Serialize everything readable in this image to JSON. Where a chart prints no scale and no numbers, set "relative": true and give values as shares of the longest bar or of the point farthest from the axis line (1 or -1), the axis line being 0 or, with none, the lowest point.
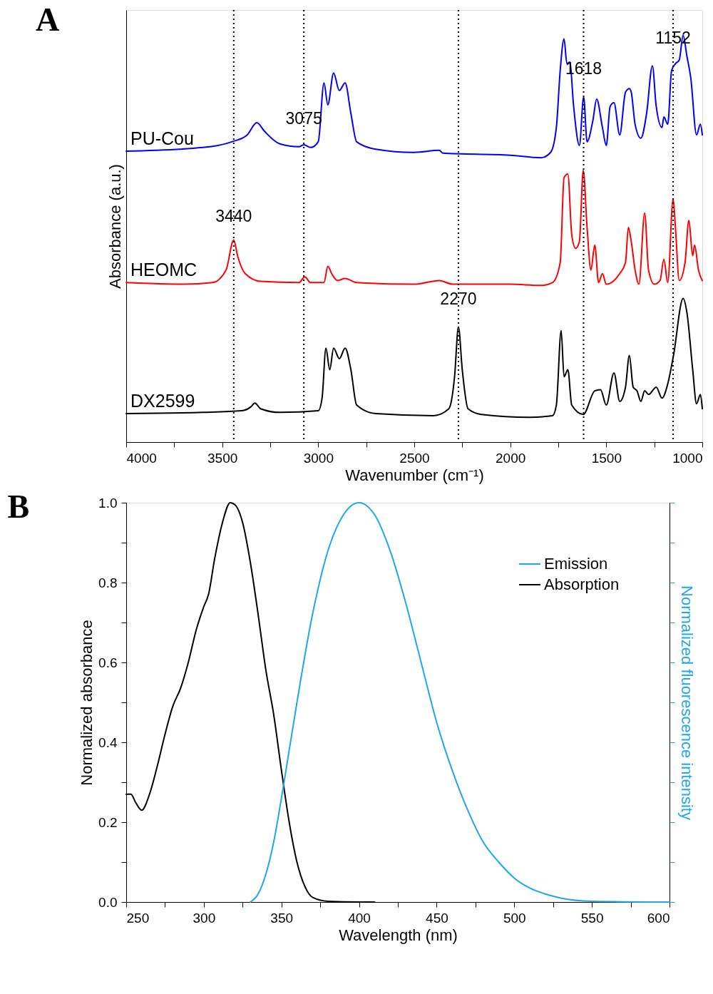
{
  "chart_data": [
    {
      "type": "line",
      "title": "A",
      "xlabel": "Wavenumber (cm⁻¹)",
      "ylabel": "Absorbance (a.u.)",
      "relative": true,
      "xlim": [
        4000,
        1000
      ],
      "xticks": [
        4000,
        {
          "value": 3750,
          "label": null
        },
        3500,
        {
          "value": 3250,
          "label": null
        },
        3000,
        {
          "value": 2750,
          "label": null
        },
        2500,
        {
          "value": 2250,
          "label": null
        },
        2000,
        {
          "value": 1750,
          "label": null
        },
        1500,
        {
          "value": 1250,
          "label": null
        },
        1000
      ],
      "tick_labels": "x",
      "legend": false,
      "line_style": "solid",
      "marker": "none",
      "series": [
        {
          "name": "PU-Cou",
          "color": "#0000ff",
          "x": [
            4000,
            3600,
            3450,
            3370,
            3320,
            3280,
            3200,
            3100,
            3075,
            3040,
            3000,
            2970,
            2950,
            2920,
            2890,
            2860,
            2830,
            2800,
            2700,
            2500,
            2370,
            2350,
            2000,
            1840,
            1790,
            1760,
            1740,
            1720,
            1705,
            1690,
            1670,
            1640,
            1618,
            1600,
            1570,
            1550,
            1520,
            1500,
            1480,
            1460,
            1430,
            1400,
            1380,
            1370,
            1350,
            1320,
            1290,
            1260,
            1240,
            1210,
            1200,
            1180,
            1160,
            1140,
            1120,
            1100,
            1080,
            1060,
            1030,
            1010,
            1000
          ],
          "values": [
            0.715,
            0.724,
            0.738,
            0.755,
            0.785,
            0.764,
            0.733,
            0.726,
            0.731,
            0.724,
            0.738,
            0.883,
            0.829,
            0.907,
            0.864,
            0.883,
            0.808,
            0.738,
            0.72,
            0.712,
            0.717,
            0.71,
            0.705,
            0.699,
            0.712,
            0.773,
            0.913,
            0.991,
            0.93,
            0.934,
            0.825,
            0.729,
            0.848,
            0.738,
            0.79,
            0.843,
            0.773,
            0.729,
            0.825,
            0.834,
            0.755,
            0.86,
            0.869,
            0.86,
            0.781,
            0.747,
            0.808,
            0.925,
            0.825,
            0.773,
            0.799,
            0.781,
            0.913,
            0.93,
            0.939,
            1.0,
            0.948,
            0.895,
            0.755,
            0.781,
            0.755
          ]
        },
        {
          "name": "HEOMC",
          "color": "#ff0000",
          "x": [
            4000,
            3700,
            3550,
            3480,
            3440,
            3420,
            3380,
            3300,
            3100,
            3070,
            3040,
            2970,
            2950,
            2930,
            2900,
            2860,
            2800,
            2500,
            2370,
            2300,
            2000,
            1840,
            1780,
            1740,
            1720,
            1700,
            1680,
            1660,
            1640,
            1620,
            1600,
            1580,
            1560,
            1540,
            1520,
            1500,
            1460,
            1430,
            1400,
            1385,
            1370,
            1350,
            1330,
            1300,
            1280,
            1250,
            1220,
            1200,
            1180,
            1152,
            1140,
            1120,
            1090,
            1070,
            1050,
            1040,
            1020,
            1000
          ],
          "values": [
            0.392,
            0.388,
            0.392,
            0.423,
            0.497,
            0.458,
            0.414,
            0.395,
            0.392,
            0.406,
            0.392,
            0.392,
            0.432,
            0.414,
            0.397,
            0.402,
            0.392,
            0.388,
            0.397,
            0.388,
            0.388,
            0.385,
            0.392,
            0.441,
            0.65,
            0.659,
            0.51,
            0.476,
            0.493,
            0.668,
            0.528,
            0.423,
            0.484,
            0.392,
            0.414,
            0.388,
            0.397,
            0.414,
            0.441,
            0.528,
            0.493,
            0.423,
            0.388,
            0.563,
            0.423,
            0.388,
            0.397,
            0.449,
            0.392,
            0.598,
            0.528,
            0.397,
            0.441,
            0.545,
            0.458,
            0.484,
            0.423,
            0.397
          ]
        },
        {
          "name": "DX2599",
          "color": "#000000",
          "x": [
            4000,
            3600,
            3400,
            3350,
            3330,
            3300,
            3200,
            3000,
            2980,
            2960,
            2940,
            2920,
            2890,
            2860,
            2830,
            2800,
            2700,
            2400,
            2320,
            2290,
            2270,
            2250,
            2220,
            2150,
            1900,
            1780,
            1760,
            1735,
            1720,
            1700,
            1680,
            1620,
            1560,
            1530,
            1500,
            1460,
            1430,
            1400,
            1380,
            1360,
            1340,
            1320,
            1300,
            1280,
            1240,
            1210,
            1180,
            1150,
            1100,
            1080,
            1050,
            1030,
            1010,
            1000
          ],
          "values": [
            0.07,
            0.073,
            0.077,
            0.087,
            0.096,
            0.082,
            0.073,
            0.077,
            0.108,
            0.231,
            0.178,
            0.231,
            0.205,
            0.231,
            0.178,
            0.091,
            0.07,
            0.065,
            0.082,
            0.161,
            0.283,
            0.178,
            0.082,
            0.068,
            0.061,
            0.065,
            0.091,
            0.274,
            0.161,
            0.178,
            0.091,
            0.068,
            0.126,
            0.129,
            0.091,
            0.17,
            0.1,
            0.135,
            0.213,
            0.135,
            0.126,
            0.1,
            0.126,
            0.117,
            0.135,
            0.108,
            0.143,
            0.213,
            0.353,
            0.318,
            0.178,
            0.094,
            0.117,
            0.082
          ]
        }
      ],
      "ref_lines": [
        {
          "axis": "x",
          "value": 3440,
          "color": "#000000",
          "line_style": "dotted"
        },
        {
          "axis": "x",
          "value": 3075,
          "color": "#000000",
          "line_style": "dotted"
        },
        {
          "axis": "x",
          "value": 2270,
          "color": "#000000",
          "line_style": "dotted"
        },
        {
          "axis": "x",
          "value": 1618,
          "color": "#000000",
          "line_style": "dotted"
        },
        {
          "axis": "x",
          "value": 1152,
          "color": "#000000",
          "line_style": "dotted"
        }
      ],
      "annotations": [
        {
          "text": "3440",
          "x": 3440,
          "y": 0.533
        },
        {
          "text": "3075",
          "x": 3075,
          "y": 0.773
        },
        {
          "text": "2270",
          "x": 2270,
          "y": 0.329
        },
        {
          "text": "1618",
          "x": 1618,
          "y": 0.895
        },
        {
          "text": "1152",
          "x": 1152,
          "y": 0.97
        }
      ]
    },
    {
      "type": "line",
      "title": "B",
      "xlabel": "Wavelength (nm)",
      "ylabel": "Normalized absorbance",
      "y2label": "Normalized fluorescence intensity",
      "xlim": [
        250,
        600
      ],
      "xticks": [
        250,
        {
          "value": 275,
          "label": null
        },
        300,
        {
          "value": 325,
          "label": null
        },
        350,
        {
          "value": 375,
          "label": null
        },
        400,
        {
          "value": 425,
          "label": null
        },
        450,
        {
          "value": 475,
          "label": null
        },
        500,
        {
          "value": 525,
          "label": null
        },
        550,
        {
          "value": 575,
          "label": null
        },
        600
      ],
      "ylim": [
        0,
        1
      ],
      "yticks": [
        {
          "value": 0,
          "label": "0.0"
        },
        {
          "value": 0.1,
          "label": null
        },
        {
          "value": 0.2,
          "label": "0.2"
        },
        {
          "value": 0.3,
          "label": null
        },
        {
          "value": 0.4,
          "label": "0.4"
        },
        {
          "value": 0.5,
          "label": null
        },
        {
          "value": 0.6,
          "label": "0.6"
        },
        {
          "value": 0.7,
          "label": null
        },
        {
          "value": 0.8,
          "label": "0.8"
        },
        {
          "value": 0.9,
          "label": null
        },
        {
          "value": 1,
          "label": "1.0"
        }
      ],
      "tick_labels": "xy",
      "legend": "top right",
      "line_style": "solid",
      "marker": "none",
      "series": [
        {
          "name": "Emission",
          "color": "#1ea7f0",
          "x": [
            330,
            335,
            340,
            345,
            350,
            355,
            360,
            370,
            380,
            390,
            400,
            410,
            420,
            430,
            440,
            450,
            460,
            470,
            480,
            490,
            500,
            510,
            520,
            530,
            550,
            600
          ],
          "values": [
            0,
            0.02,
            0.07,
            0.15,
            0.26,
            0.38,
            0.5,
            0.72,
            0.88,
            0.97,
            1.0,
            0.97,
            0.88,
            0.75,
            0.6,
            0.45,
            0.33,
            0.23,
            0.15,
            0.1,
            0.06,
            0.035,
            0.02,
            0.01,
            0.002,
            0
          ]
        },
        {
          "name": "Absorption",
          "color": "#000000",
          "x": [
            250,
            253,
            256,
            260,
            265,
            270,
            275,
            280,
            285,
            290,
            295,
            300,
            303,
            307,
            312,
            317,
            320,
            325,
            330,
            335,
            340,
            345,
            350,
            355,
            360,
            365,
            370,
            380,
            400,
            410
          ],
          "values": [
            0.27,
            0.27,
            0.25,
            0.23,
            0.27,
            0.34,
            0.42,
            0.49,
            0.535,
            0.6,
            0.68,
            0.74,
            0.77,
            0.86,
            0.95,
            1.0,
            0.995,
            0.95,
            0.85,
            0.72,
            0.58,
            0.47,
            0.33,
            0.2,
            0.1,
            0.04,
            0.012,
            0.002,
            0,
            0
          ]
        }
      ]
    }
  ]
}
